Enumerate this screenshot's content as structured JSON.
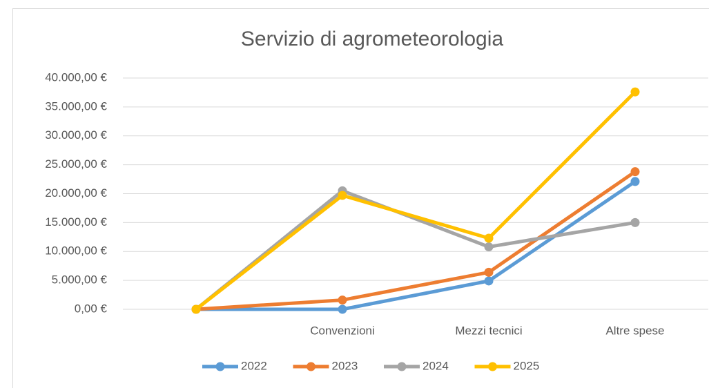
{
  "chart_data": {
    "type": "line",
    "title": "Servizio di agrometeorologia",
    "categories": [
      null,
      "Convenzioni",
      "Mezzi tecnici",
      "Altre spese"
    ],
    "series": [
      {
        "name": "2022",
        "color": "#5b9bd5",
        "values": [
          0,
          0,
          4900,
          22100
        ]
      },
      {
        "name": "2023",
        "color": "#ed7d31",
        "values": [
          0,
          1600,
          6400,
          23800
        ]
      },
      {
        "name": "2024",
        "color": "#a5a5a5",
        "values": [
          0,
          20500,
          10800,
          15000
        ]
      },
      {
        "name": "2025",
        "color": "#ffc000",
        "values": [
          0,
          19700,
          12300,
          37600
        ]
      }
    ],
    "ylim": [
      0,
      40000
    ],
    "yticks": [
      {
        "value": 0,
        "label": "0,00 €"
      },
      {
        "value": 5000,
        "label": "5.000,00 €"
      },
      {
        "value": 10000,
        "label": "10.000,00 €"
      },
      {
        "value": 15000,
        "label": "15.000,00 €"
      },
      {
        "value": 20000,
        "label": "20.000,00 €"
      },
      {
        "value": 25000,
        "label": "25.000,00 €"
      },
      {
        "value": 30000,
        "label": "30.000,00 €"
      },
      {
        "value": 35000,
        "label": "35.000,00 €"
      },
      {
        "value": 40000,
        "label": "40.000,00 €"
      }
    ],
    "grid": true,
    "legend": "bottom"
  }
}
